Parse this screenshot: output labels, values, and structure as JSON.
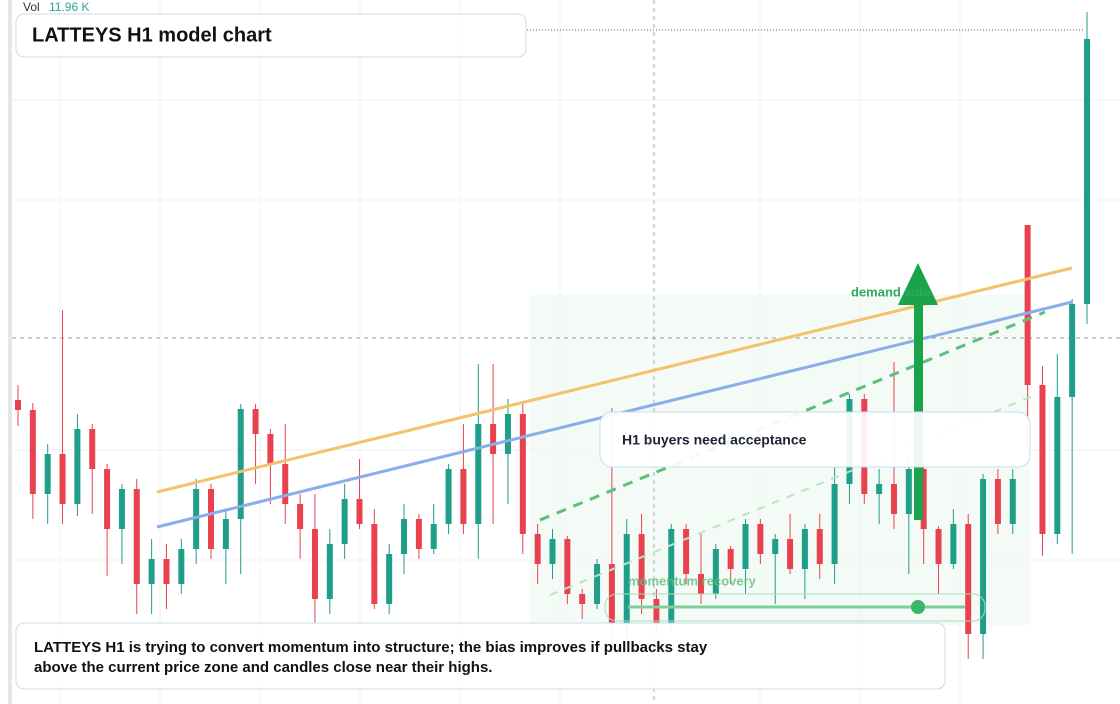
{
  "chart_data": {
    "type": "candlestick",
    "title": "LATTEYS H1 model chart",
    "volume_label": "Vol",
    "volume_value": "11.96 K",
    "note": "LATTEYS H1 is trying to convert momentum into structure; the bias improves if pullbacks stay above the current price zone and candles close near their highs.",
    "annotations": [
      "H1 buyers need acceptance",
      "demand side",
      "momentum recovery"
    ],
    "up_color": "#1f9e89",
    "down_color": "#e8424f",
    "ylim": [
      0,
      70.4
    ],
    "open": [
      30.4,
      29.4,
      21.0,
      25.0,
      20.0,
      27.5,
      23.5,
      17.5,
      21.5,
      12.0,
      14.5,
      12.0,
      15.5,
      21.5,
      15.5,
      18.5,
      29.5,
      27.0,
      24.0,
      20.0,
      17.5,
      10.5,
      16.0,
      20.5,
      18.0,
      10.0,
      15.0,
      18.5,
      15.5,
      18.0,
      23.5,
      18.0,
      28.0,
      25.0,
      29.0,
      17.0,
      14.0,
      16.5,
      11.0,
      10.0,
      14.0,
      8.0,
      17.0,
      10.5,
      8.0,
      17.5,
      13.0,
      11.0,
      15.5,
      13.5,
      18.0,
      15.0,
      16.5,
      13.5,
      17.5,
      14.0,
      22.0,
      30.5,
      21.0,
      22.0,
      19.0,
      23.5,
      17.5,
      14.0,
      18.0,
      7.0,
      22.5,
      18.0,
      47.9,
      31.9,
      17.0,
      30.7,
      40.0
    ],
    "high": [
      31.9,
      30.1,
      26.0,
      39.4,
      29.0,
      28.0,
      24.0,
      22.0,
      22.5,
      16.5,
      16.0,
      16.5,
      22.5,
      22.0,
      19.5,
      30.0,
      30.0,
      27.5,
      28.0,
      21.0,
      21.0,
      17.5,
      22.0,
      24.5,
      19.5,
      16.0,
      20.0,
      19.0,
      20.0,
      24.0,
      28.0,
      34.0,
      34.0,
      30.5,
      30.0,
      18.0,
      17.5,
      16.8,
      11.5,
      14.5,
      29.6,
      18.5,
      19.0,
      11.5,
      18.0,
      18.0,
      17.0,
      16.0,
      15.8,
      18.5,
      18.5,
      17.0,
      19.0,
      18.0,
      19.0,
      24.0,
      31.0,
      31.0,
      23.5,
      34.2,
      24.5,
      24.0,
      17.8,
      19.5,
      19.0,
      23.0,
      23.5,
      23.5,
      47.9,
      33.8,
      35.0,
      40.5,
      69.2
    ],
    "low": [
      27.8,
      18.5,
      18.0,
      18.0,
      18.8,
      19.0,
      12.8,
      14.0,
      9.0,
      9.0,
      9.5,
      11.0,
      14.0,
      14.5,
      12.0,
      13.0,
      22.0,
      20.0,
      18.0,
      14.5,
      8.0,
      9.0,
      14.5,
      17.5,
      9.5,
      9.0,
      13.0,
      14.5,
      15.0,
      17.0,
      17.0,
      14.5,
      18.0,
      20.0,
      15.0,
      12.0,
      12.5,
      10.0,
      8.5,
      9.5,
      6.0,
      6.5,
      9.0,
      7.0,
      7.5,
      12.0,
      10.0,
      10.5,
      12.0,
      11.0,
      14.0,
      10.0,
      13.0,
      10.5,
      12.5,
      12.0,
      20.0,
      20.0,
      18.0,
      17.5,
      13.0,
      14.0,
      11.0,
      13.5,
      4.5,
      4.5,
      17.0,
      17.0,
      26.0,
      14.8,
      16.0,
      15.0,
      38.0
    ],
    "close": [
      29.4,
      21.0,
      25.0,
      20.0,
      27.5,
      23.5,
      17.5,
      21.5,
      12.0,
      14.5,
      12.0,
      15.5,
      21.5,
      15.5,
      18.5,
      29.5,
      27.0,
      24.0,
      20.0,
      17.5,
      10.5,
      16.0,
      20.5,
      18.0,
      10.0,
      15.0,
      18.5,
      15.5,
      18.0,
      23.5,
      18.0,
      28.0,
      25.0,
      29.0,
      17.0,
      14.0,
      16.5,
      11.0,
      10.0,
      14.0,
      8.0,
      17.0,
      10.5,
      8.0,
      17.5,
      13.0,
      11.0,
      15.5,
      13.5,
      18.0,
      15.0,
      16.5,
      13.5,
      17.5,
      14.0,
      22.0,
      30.5,
      21.0,
      22.0,
      19.0,
      23.5,
      17.5,
      14.0,
      18.0,
      7.0,
      22.5,
      18.0,
      22.5,
      31.9,
      17.0,
      30.7,
      40.0,
      66.5
    ]
  }
}
